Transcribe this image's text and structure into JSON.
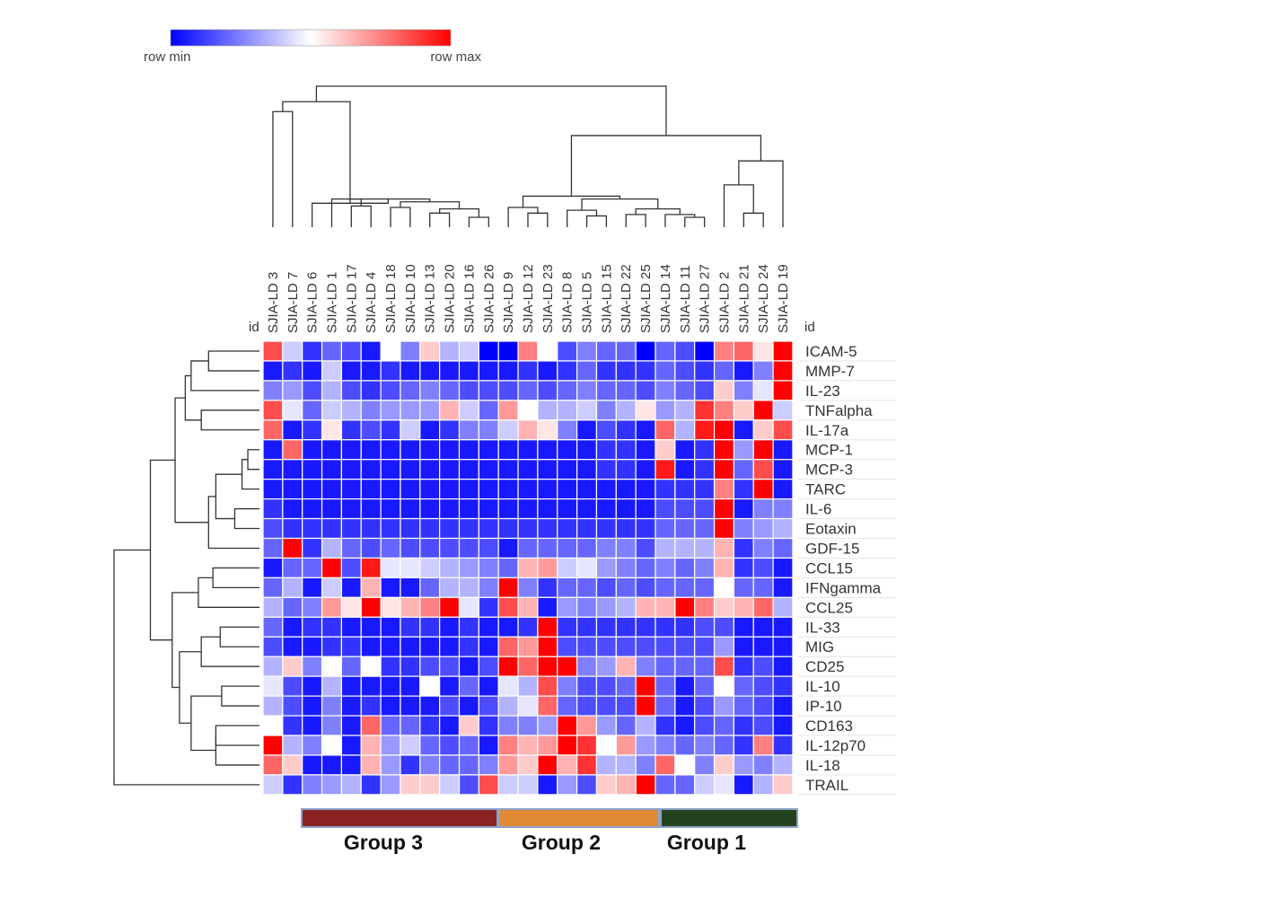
{
  "chart_data": {
    "type": "heatmap",
    "color_scale": {
      "min_label": "row min",
      "max_label": "row max",
      "min_color": "#0000ff",
      "mid_color": "#ffffff",
      "max_color": "#ff0000"
    },
    "id_label": "id",
    "columns": [
      "SJIA-LD 3",
      "SJIA-LD 7",
      "SJIA-LD 6",
      "SJIA-LD 1",
      "SJIA-LD 17",
      "SJIA-LD 4",
      "SJIA-LD 18",
      "SJIA-LD 10",
      "SJIA-LD 13",
      "SJIA-LD 20",
      "SJIA-LD 16",
      "SJIA-LD 26",
      "SJIA-LD 9",
      "SJIA-LD 12",
      "SJIA-LD 23",
      "SJIA-LD 8",
      "SJIA-LD 5",
      "SJIA-LD 15",
      "SJIA-LD 22",
      "SJIA-LD 25",
      "SJIA-LD 14",
      "SJIA-LD 11",
      "SJIA-LD 27",
      "SJIA-LD 2",
      "SJIA-LD 21",
      "SJIA-LD 24",
      "SJIA-LD 19"
    ],
    "rows": [
      "ICAM-5",
      "MMP-7",
      "IL-23",
      "TNFalpha",
      "IL-17a",
      "MCP-1",
      "MCP-3",
      "TARC",
      "IL-6",
      "Eotaxin",
      "GDF-15",
      "CCL15",
      "IFNgamma",
      "CCL25",
      "IL-33",
      "MIG",
      "CD25",
      "IL-10",
      "IP-10",
      "CD163",
      "IL-12p70",
      "IL-18",
      "TRAIL"
    ],
    "values": [
      [
        0.7,
        -0.2,
        -0.8,
        -0.6,
        -0.7,
        -0.9,
        0.0,
        -0.5,
        0.2,
        -0.3,
        -0.2,
        -1,
        -1,
        0.5,
        0.0,
        -0.7,
        -0.5,
        -0.6,
        -0.6,
        -1,
        -0.6,
        -0.7,
        -1,
        0.5,
        0.6,
        0.1,
        1
      ],
      [
        -0.9,
        -0.8,
        -0.9,
        -0.2,
        -0.9,
        -0.9,
        -0.8,
        -0.9,
        -0.9,
        -0.9,
        -0.9,
        -0.9,
        -0.9,
        -0.8,
        -0.9,
        -0.8,
        -0.6,
        -0.8,
        -0.8,
        -0.8,
        -0.6,
        -0.7,
        -0.8,
        -0.6,
        -0.9,
        -0.5,
        1
      ],
      [
        -0.5,
        -0.4,
        -0.7,
        -0.3,
        -0.7,
        -0.8,
        -0.7,
        -0.6,
        -0.5,
        -0.6,
        -0.7,
        -0.7,
        -0.7,
        -0.6,
        -0.7,
        -0.6,
        -0.5,
        -0.6,
        -0.6,
        -0.7,
        -0.5,
        -0.6,
        -0.7,
        0.2,
        -0.5,
        -0.1,
        1
      ],
      [
        0.7,
        -0.1,
        -0.6,
        -0.2,
        -0.3,
        -0.5,
        -0.4,
        -0.4,
        -0.4,
        0.3,
        -0.2,
        -0.6,
        0.4,
        0.0,
        -0.3,
        -0.3,
        -0.2,
        -0.5,
        -0.3,
        0.1,
        -0.4,
        -0.3,
        0.8,
        0.5,
        0.2,
        1,
        -0.2
      ],
      [
        0.6,
        -0.9,
        -0.8,
        0.1,
        -0.8,
        -0.7,
        -0.8,
        -0.2,
        -0.9,
        -0.8,
        -0.5,
        -0.5,
        -0.2,
        0.3,
        0.1,
        -0.5,
        -0.9,
        -0.7,
        -0.8,
        -0.9,
        0.6,
        -0.3,
        0.9,
        1,
        -0.9,
        0.2,
        0.7
      ],
      [
        -0.9,
        0.6,
        -0.9,
        -0.9,
        -0.9,
        -0.9,
        -0.9,
        -0.9,
        -0.9,
        -0.9,
        -0.9,
        -0.9,
        -0.9,
        -0.9,
        -0.9,
        -0.9,
        -0.9,
        -0.8,
        -0.8,
        -0.9,
        0.2,
        -0.9,
        -0.8,
        1,
        -0.4,
        1,
        -0.9
      ],
      [
        -0.9,
        -0.9,
        -0.9,
        -0.9,
        -0.9,
        -0.9,
        -0.9,
        -0.9,
        -0.9,
        -0.9,
        -0.9,
        -0.9,
        -0.9,
        -0.9,
        -0.9,
        -0.9,
        -0.9,
        -0.8,
        -0.8,
        -0.9,
        0.9,
        -0.9,
        -0.8,
        1,
        -0.6,
        0.7,
        -0.9
      ],
      [
        -0.9,
        -0.9,
        -0.9,
        -0.9,
        -0.9,
        -0.9,
        -0.9,
        -0.9,
        -0.9,
        -0.9,
        -0.9,
        -0.9,
        -0.9,
        -0.9,
        -0.9,
        -0.9,
        -0.9,
        -0.9,
        -0.9,
        -0.9,
        -0.8,
        -0.8,
        -0.8,
        0.5,
        -0.8,
        1,
        -0.9
      ],
      [
        -0.8,
        -0.9,
        -0.9,
        -0.9,
        -0.9,
        -0.9,
        -0.9,
        -0.9,
        -0.9,
        -0.9,
        -0.9,
        -0.9,
        -0.9,
        -0.9,
        -0.9,
        -0.9,
        -0.9,
        -0.9,
        -0.9,
        -0.9,
        -0.7,
        -0.7,
        -0.7,
        1,
        -0.9,
        -0.5,
        -0.5
      ],
      [
        -0.7,
        -0.8,
        -0.8,
        -0.8,
        -0.8,
        -0.8,
        -0.8,
        -0.8,
        -0.8,
        -0.8,
        -0.8,
        -0.8,
        -0.8,
        -0.8,
        -0.8,
        -0.8,
        -0.8,
        -0.8,
        -0.8,
        -0.8,
        -0.6,
        -0.6,
        -0.6,
        1,
        -0.5,
        -0.4,
        -0.3
      ],
      [
        -0.6,
        1,
        -0.8,
        -0.3,
        -0.6,
        -0.7,
        -0.6,
        -0.7,
        -0.7,
        -0.7,
        -0.7,
        -0.7,
        -0.9,
        -0.6,
        -0.6,
        -0.6,
        -0.6,
        -0.5,
        -0.5,
        -0.7,
        -0.3,
        -0.3,
        -0.3,
        0.3,
        -0.8,
        -0.5,
        -0.6
      ],
      [
        -0.9,
        -0.6,
        -0.6,
        1,
        -0.7,
        0.9,
        -0.1,
        -0.1,
        -0.2,
        -0.3,
        -0.4,
        -0.5,
        -0.6,
        0.3,
        0.4,
        -0.2,
        -0.1,
        -0.4,
        -0.5,
        -0.6,
        -0.5,
        -0.6,
        -0.5,
        0.3,
        -0.8,
        -0.7,
        -0.9
      ],
      [
        -0.6,
        -0.3,
        -0.9,
        -0.2,
        -0.9,
        0.3,
        -0.9,
        -0.9,
        -0.6,
        -0.3,
        -0.3,
        -0.5,
        1,
        -0.5,
        -0.8,
        -0.6,
        -0.6,
        -0.7,
        -0.6,
        -0.7,
        -0.6,
        -0.6,
        -0.6,
        0.0,
        -0.6,
        -0.6,
        -0.9
      ],
      [
        -0.3,
        -0.6,
        -0.5,
        0.4,
        0.1,
        1,
        0.1,
        0.3,
        0.5,
        1,
        -0.1,
        -0.8,
        0.7,
        0.3,
        -0.9,
        -0.4,
        -0.5,
        -0.4,
        -0.3,
        0.3,
        0.3,
        1,
        0.5,
        0.2,
        0.3,
        0.6,
        -0.3
      ],
      [
        -0.6,
        -0.9,
        -0.8,
        -0.8,
        -0.9,
        -0.9,
        -0.9,
        -0.8,
        -0.8,
        -0.9,
        -0.8,
        -0.9,
        -0.9,
        -0.8,
        1,
        -0.8,
        -0.8,
        -0.8,
        -0.8,
        -0.8,
        -0.8,
        -0.8,
        -0.7,
        -0.7,
        -0.9,
        -0.9,
        -0.9
      ],
      [
        -0.7,
        -0.9,
        -0.9,
        -0.8,
        -0.8,
        -0.9,
        -0.9,
        -0.9,
        -0.9,
        -0.9,
        -0.8,
        -0.9,
        0.6,
        0.4,
        1,
        -0.7,
        -0.7,
        -0.7,
        -0.7,
        -0.7,
        -0.7,
        -0.7,
        -0.7,
        -0.4,
        -0.9,
        -0.9,
        -0.9
      ],
      [
        -0.3,
        0.2,
        -0.5,
        0.0,
        -0.6,
        0.0,
        -0.8,
        -0.8,
        -0.7,
        -0.7,
        -0.9,
        -0.7,
        1,
        0.6,
        1,
        1,
        -0.5,
        -0.4,
        0.3,
        -0.5,
        -0.6,
        -0.6,
        -0.6,
        0.7,
        -0.8,
        -0.7,
        -0.9
      ],
      [
        -0.1,
        -0.7,
        -0.9,
        -0.3,
        -0.9,
        -0.9,
        -0.9,
        -0.9,
        0.0,
        -0.9,
        -0.6,
        -0.9,
        -0.1,
        -0.3,
        0.7,
        -0.5,
        -0.7,
        -0.7,
        -0.6,
        1,
        -0.6,
        -0.9,
        -0.6,
        0.0,
        -0.6,
        -0.7,
        -0.8
      ],
      [
        -0.3,
        -0.7,
        -0.9,
        -0.5,
        -0.9,
        -0.8,
        -0.9,
        -0.9,
        -0.9,
        -0.7,
        -0.9,
        -0.7,
        -0.3,
        -0.1,
        0.6,
        -0.6,
        -0.7,
        -0.7,
        -0.7,
        1,
        -0.6,
        -0.9,
        -0.7,
        -0.4,
        -0.6,
        -0.7,
        -0.9
      ],
      [
        0.0,
        -0.8,
        -0.9,
        -0.5,
        -0.9,
        0.6,
        -0.6,
        -0.6,
        -0.8,
        -0.9,
        0.2,
        -0.8,
        -0.5,
        -0.5,
        -0.4,
        1,
        0.4,
        -0.4,
        -0.6,
        -0.3,
        -0.8,
        -0.9,
        -0.7,
        -0.6,
        -0.8,
        -0.7,
        -0.9
      ],
      [
        1,
        -0.3,
        -0.5,
        0.0,
        -0.9,
        0.3,
        -0.4,
        -0.2,
        -0.6,
        -0.7,
        -0.6,
        -0.9,
        0.5,
        0.3,
        0.4,
        1,
        0.8,
        0.0,
        0.4,
        -0.4,
        -0.5,
        -0.6,
        -0.5,
        -0.6,
        -0.8,
        0.5,
        -0.8
      ],
      [
        0.6,
        0.2,
        -0.9,
        -0.9,
        -0.9,
        0.3,
        -0.4,
        -0.8,
        -0.5,
        -0.6,
        -0.6,
        -0.5,
        0.4,
        0.2,
        1,
        0.3,
        0.8,
        -0.3,
        -0.3,
        -0.5,
        0.6,
        0.0,
        -0.5,
        0.2,
        -0.4,
        -0.5,
        -0.3
      ],
      [
        -0.2,
        -0.8,
        -0.5,
        -0.4,
        -0.3,
        -0.8,
        -0.4,
        0.2,
        0.2,
        -0.2,
        -0.7,
        0.7,
        -0.2,
        -0.2,
        -0.9,
        -0.4,
        -0.7,
        0.2,
        0.3,
        1,
        -0.6,
        -0.6,
        -0.2,
        -0.1,
        -0.9,
        -0.3,
        0.2
      ]
    ],
    "groups": [
      {
        "label": "Group 3",
        "color": "#8b2323"
      },
      {
        "label": "Group 2",
        "color": "#e08a33"
      },
      {
        "label": "Group 1",
        "color": "#24421e"
      }
    ]
  }
}
